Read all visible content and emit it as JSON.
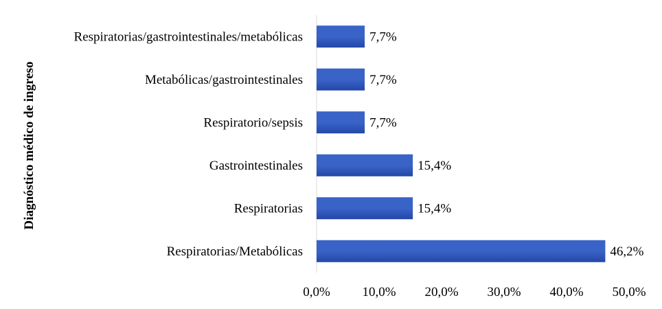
{
  "chart_data": {
    "type": "bar",
    "orientation": "horizontal",
    "categories": [
      "Respiratorias/gastrointestinales/metabólicas",
      "Metabólicas/gastrointestinales",
      "Respiratorio/sepsis",
      "Gastrointestinales",
      "Respiratorias",
      "Respiratorias/Metabólicas"
    ],
    "values": [
      7.7,
      7.7,
      7.7,
      15.4,
      15.4,
      46.2
    ],
    "data_labels": [
      "7,7%",
      "7,7%",
      "7,7%",
      "15,4%",
      "15,4%",
      "46,2%"
    ],
    "title": "",
    "xlabel": "",
    "ylabel": "Diagnóstico médico de ingreso",
    "xlim": [
      0,
      50
    ],
    "xticks": [
      0,
      10,
      20,
      30,
      40,
      50
    ],
    "xtick_labels": [
      "0,0%",
      "10,0%",
      "20,0%",
      "30,0%",
      "40,0%",
      "50,0%"
    ],
    "grid": false,
    "legend": "none",
    "bar_color": "#3a63c8",
    "bar_color_dark": "#2447a8"
  }
}
